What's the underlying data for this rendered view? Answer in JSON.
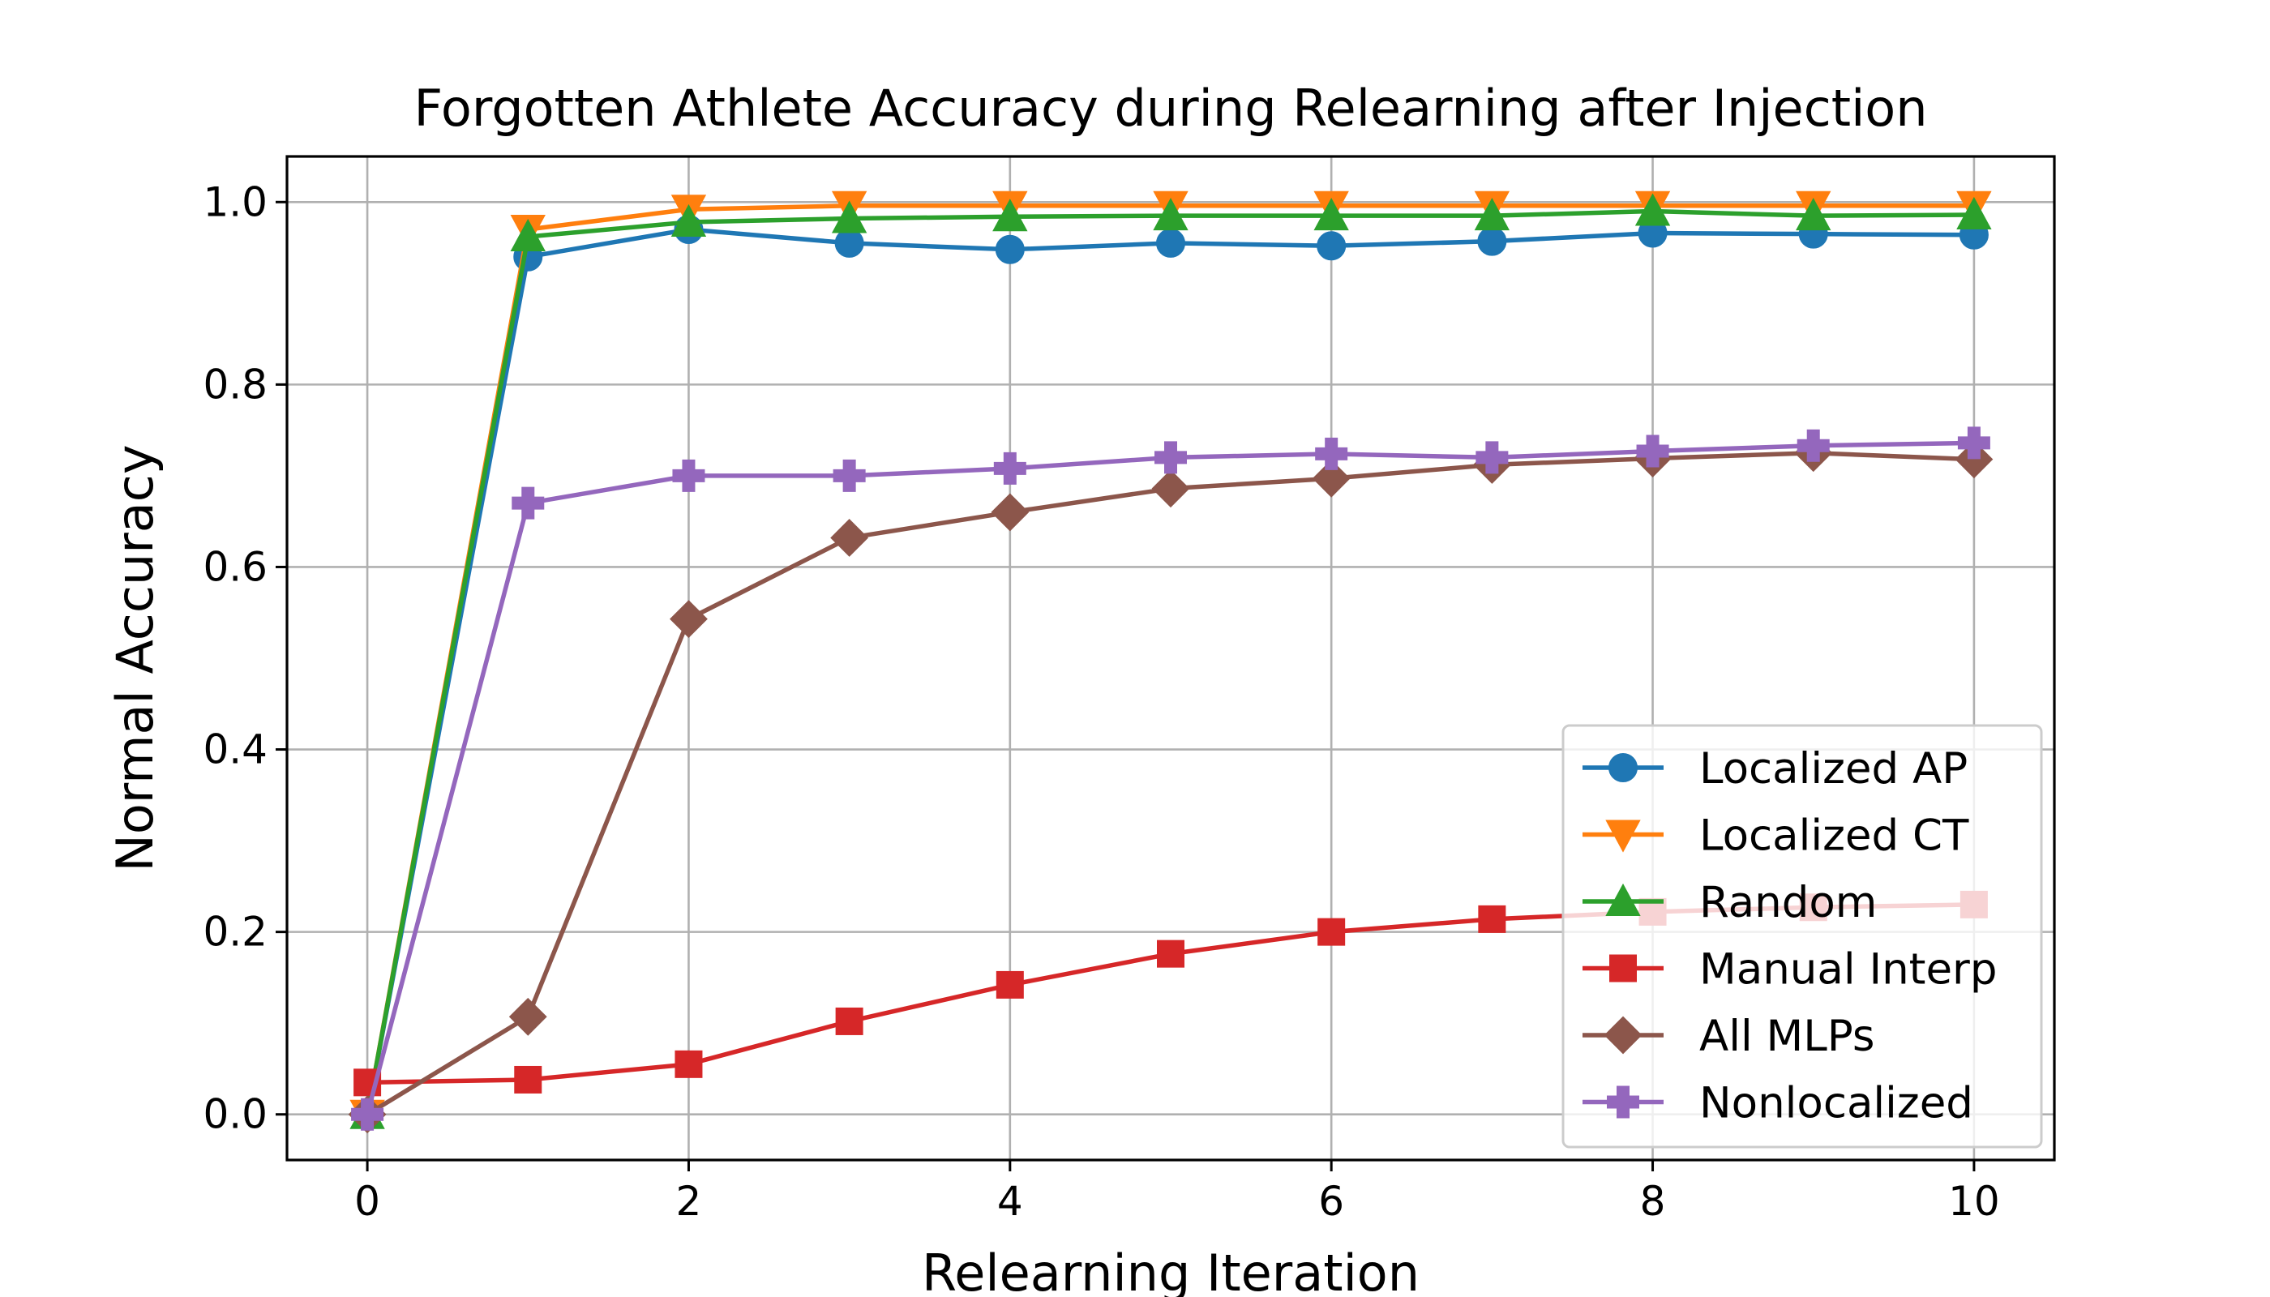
{
  "chart_data": {
    "type": "line",
    "title": "Forgotten Athlete Accuracy during Relearning after Injection",
    "xlabel": "Relearning Iteration",
    "ylabel": "Normal Accuracy",
    "x": [
      0,
      1,
      2,
      3,
      4,
      5,
      6,
      7,
      8,
      9,
      10
    ],
    "xlim": [
      -0.5,
      10.5
    ],
    "ylim": [
      -0.05,
      1.05
    ],
    "xticks": [
      0,
      2,
      4,
      6,
      8,
      10
    ],
    "yticks": [
      0.0,
      0.2,
      0.4,
      0.6,
      0.8,
      1.0
    ],
    "xtick_labels": [
      "0",
      "2",
      "4",
      "6",
      "8",
      "10"
    ],
    "ytick_labels": [
      "0.0",
      "0.2",
      "0.4",
      "0.6",
      "0.8",
      "1.0"
    ],
    "grid": true,
    "legend_position": "lower-right",
    "series": [
      {
        "name": "Localized AP",
        "color": "#1f77b4",
        "marker": "circle",
        "values": [
          0.0,
          0.94,
          0.97,
          0.955,
          0.948,
          0.955,
          0.952,
          0.957,
          0.966,
          0.965,
          0.964
        ]
      },
      {
        "name": "Localized CT",
        "color": "#ff7f0e",
        "marker": "triangle-down",
        "values": [
          0.0,
          0.97,
          0.992,
          0.996,
          0.996,
          0.996,
          0.996,
          0.996,
          0.996,
          0.996,
          0.996
        ]
      },
      {
        "name": "Random",
        "color": "#2ca02c",
        "marker": "triangle-up",
        "values": [
          0.0,
          0.962,
          0.978,
          0.982,
          0.984,
          0.985,
          0.985,
          0.985,
          0.99,
          0.985,
          0.986
        ]
      },
      {
        "name": "Manual Interp",
        "color": "#d62728",
        "marker": "square",
        "values": [
          0.035,
          0.038,
          0.055,
          0.102,
          0.142,
          0.176,
          0.2,
          0.214,
          0.222,
          0.227,
          0.23
        ]
      },
      {
        "name": "All MLPs",
        "color": "#8c564b",
        "marker": "diamond",
        "values": [
          0.0,
          0.107,
          0.543,
          0.632,
          0.66,
          0.686,
          0.697,
          0.712,
          0.719,
          0.725,
          0.718
        ]
      },
      {
        "name": "Nonlocalized",
        "color": "#9467bd",
        "marker": "plus",
        "values": [
          0.0,
          0.67,
          0.7,
          0.7,
          0.708,
          0.72,
          0.724,
          0.72,
          0.727,
          0.733,
          0.736
        ]
      }
    ]
  }
}
